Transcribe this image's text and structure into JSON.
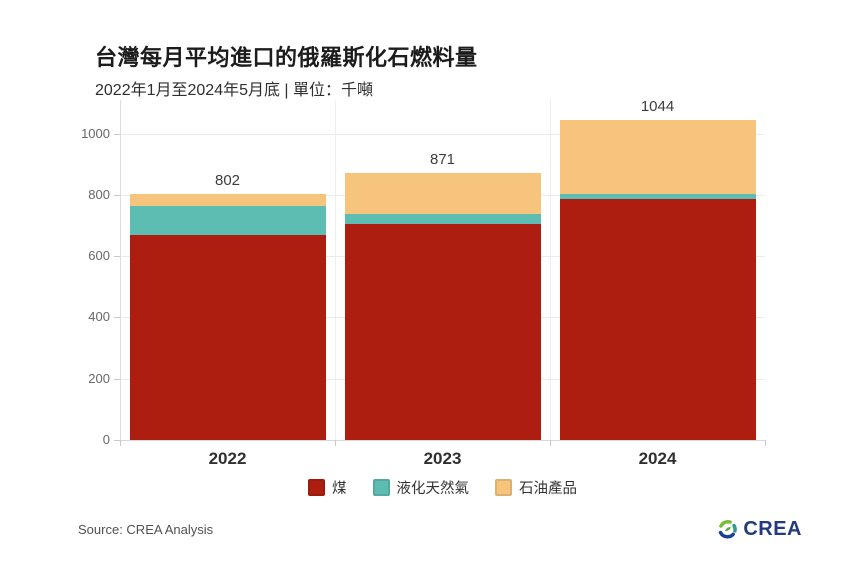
{
  "header": {
    "title": "台灣每月平均進口的俄羅斯化石燃料量",
    "subtitle": "2022年1月至2024年5月底 | 單位：千噸"
  },
  "chart_data": {
    "type": "bar",
    "stacked": true,
    "title": "台灣每月平均進口的俄羅斯化石燃料量",
    "subtitle": "2022年1月至2024年5月底 | 單位：千噸",
    "unit_label": "千噸",
    "categories": [
      "2022",
      "2023",
      "2024"
    ],
    "series": [
      {
        "key": "coal",
        "name": "煤",
        "color": "#ae1e10",
        "values": [
          670,
          706,
          785
        ]
      },
      {
        "key": "lng",
        "name": "液化天然氣",
        "color": "#5ebdb3",
        "values": [
          92,
          32,
          16
        ]
      },
      {
        "key": "oil-products",
        "name": "石油產品",
        "color": "#f6c47d",
        "values": [
          40,
          133,
          243
        ]
      }
    ],
    "totals": [
      802,
      871,
      1044
    ],
    "y_ticks": [
      0,
      200,
      400,
      600,
      800,
      1000
    ],
    "ylim": [
      0,
      1109
    ],
    "grid": "horizontal",
    "legend_position": "bottom"
  },
  "footer": {
    "source": "Source: CREA Analysis",
    "logo_text": "CREA"
  }
}
